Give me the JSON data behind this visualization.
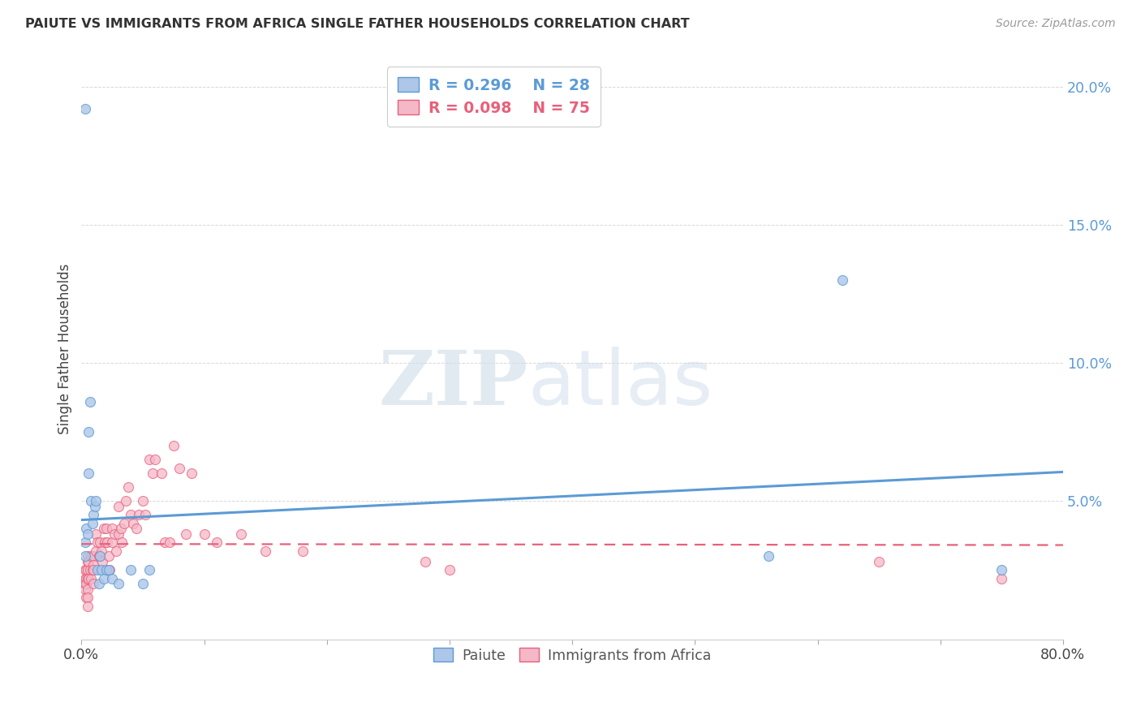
{
  "title": "PAIUTE VS IMMIGRANTS FROM AFRICA SINGLE FATHER HOUSEHOLDS CORRELATION CHART",
  "source": "Source: ZipAtlas.com",
  "ylabel": "Single Father Households",
  "xlim": [
    0.0,
    0.8
  ],
  "ylim": [
    0.0,
    0.21
  ],
  "yticks": [
    0.0,
    0.05,
    0.1,
    0.15,
    0.2
  ],
  "ytick_labels": [
    "",
    "5.0%",
    "10.0%",
    "15.0%",
    "20.0%"
  ],
  "xticks": [
    0.0,
    0.1,
    0.2,
    0.3,
    0.4,
    0.5,
    0.6,
    0.7,
    0.8
  ],
  "xtick_labels": [
    "0.0%",
    "",
    "",
    "",
    "",
    "",
    "",
    "",
    "80.0%"
  ],
  "paiute_color": "#aec6e8",
  "africa_color": "#f4b8c8",
  "paiute_edge_color": "#5b9bd5",
  "africa_edge_color": "#e8607a",
  "paiute_line_color": "#5b9bd5",
  "africa_line_color": "#e8607a",
  "legend_R_paiute": "R = 0.296",
  "legend_N_paiute": "N = 28",
  "legend_R_africa": "R = 0.098",
  "legend_N_africa": "N = 75",
  "paiute_x": [
    0.003,
    0.003,
    0.004,
    0.005,
    0.006,
    0.006,
    0.007,
    0.008,
    0.009,
    0.01,
    0.011,
    0.012,
    0.013,
    0.014,
    0.015,
    0.016,
    0.018,
    0.02,
    0.022,
    0.025,
    0.03,
    0.04,
    0.05,
    0.055,
    0.003,
    0.56,
    0.62,
    0.75
  ],
  "paiute_y": [
    0.035,
    0.03,
    0.04,
    0.038,
    0.06,
    0.075,
    0.086,
    0.05,
    0.042,
    0.045,
    0.048,
    0.05,
    0.025,
    0.02,
    0.03,
    0.025,
    0.022,
    0.025,
    0.025,
    0.022,
    0.02,
    0.025,
    0.02,
    0.025,
    0.192,
    0.03,
    0.13,
    0.025
  ],
  "africa_x": [
    0.003,
    0.003,
    0.003,
    0.003,
    0.004,
    0.004,
    0.004,
    0.004,
    0.005,
    0.005,
    0.005,
    0.005,
    0.005,
    0.005,
    0.005,
    0.006,
    0.006,
    0.007,
    0.008,
    0.008,
    0.009,
    0.01,
    0.01,
    0.01,
    0.01,
    0.012,
    0.012,
    0.013,
    0.014,
    0.015,
    0.015,
    0.016,
    0.017,
    0.018,
    0.019,
    0.02,
    0.021,
    0.022,
    0.023,
    0.025,
    0.025,
    0.027,
    0.028,
    0.03,
    0.03,
    0.032,
    0.033,
    0.035,
    0.036,
    0.038,
    0.04,
    0.042,
    0.045,
    0.047,
    0.05,
    0.052,
    0.055,
    0.058,
    0.06,
    0.065,
    0.068,
    0.072,
    0.075,
    0.08,
    0.085,
    0.09,
    0.1,
    0.11,
    0.13,
    0.15,
    0.18,
    0.28,
    0.3,
    0.65,
    0.75
  ],
  "africa_y": [
    0.025,
    0.022,
    0.02,
    0.018,
    0.025,
    0.022,
    0.02,
    0.015,
    0.03,
    0.028,
    0.025,
    0.022,
    0.018,
    0.015,
    0.012,
    0.028,
    0.022,
    0.025,
    0.03,
    0.022,
    0.025,
    0.03,
    0.027,
    0.025,
    0.02,
    0.038,
    0.032,
    0.035,
    0.03,
    0.035,
    0.03,
    0.032,
    0.028,
    0.04,
    0.035,
    0.04,
    0.035,
    0.03,
    0.025,
    0.04,
    0.035,
    0.038,
    0.032,
    0.048,
    0.038,
    0.04,
    0.035,
    0.042,
    0.05,
    0.055,
    0.045,
    0.042,
    0.04,
    0.045,
    0.05,
    0.045,
    0.065,
    0.06,
    0.065,
    0.06,
    0.035,
    0.035,
    0.07,
    0.062,
    0.038,
    0.06,
    0.038,
    0.035,
    0.038,
    0.032,
    0.032,
    0.028,
    0.025,
    0.028,
    0.022
  ],
  "watermark_zip": "ZIP",
  "watermark_atlas": "atlas",
  "background_color": "#ffffff",
  "grid_color": "#d8d8d8"
}
